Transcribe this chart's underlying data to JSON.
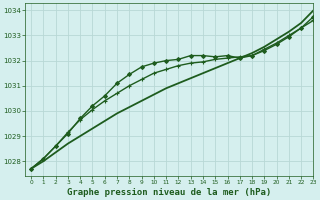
{
  "title": "Graphe pression niveau de la mer (hPa)",
  "background_color": "#d5efee",
  "grid_color": "#b8d8d5",
  "line_color": "#1e5c1e",
  "xlim": [
    -0.5,
    23
  ],
  "ylim": [
    1027.4,
    1034.3
  ],
  "yticks": [
    1028,
    1029,
    1030,
    1031,
    1032,
    1033,
    1034
  ],
  "xticks": [
    0,
    1,
    2,
    3,
    4,
    5,
    6,
    7,
    8,
    9,
    10,
    11,
    12,
    13,
    14,
    15,
    16,
    17,
    18,
    19,
    20,
    21,
    22,
    23
  ],
  "series": [
    {
      "x": [
        0,
        1,
        2,
        3,
        4,
        5,
        6,
        7,
        8,
        9,
        10,
        11,
        12,
        13,
        14,
        15,
        16,
        17,
        18,
        19,
        20,
        21,
        22,
        23
      ],
      "y": [
        1027.7,
        1028.0,
        1028.35,
        1028.7,
        1029.0,
        1029.3,
        1029.6,
        1029.9,
        1030.15,
        1030.4,
        1030.65,
        1030.9,
        1031.1,
        1031.3,
        1031.5,
        1031.7,
        1031.9,
        1032.1,
        1032.3,
        1032.55,
        1032.85,
        1033.15,
        1033.5,
        1034.0
      ],
      "marker": null,
      "linewidth": 1.3
    },
    {
      "x": [
        0,
        1,
        2,
        3,
        4,
        5,
        6,
        7,
        8,
        9,
        10,
        11,
        12,
        13,
        14,
        15,
        16,
        17,
        18,
        19,
        20,
        21,
        22,
        23
      ],
      "y": [
        1027.7,
        1028.1,
        1028.6,
        1029.1,
        1029.7,
        1030.2,
        1030.6,
        1031.1,
        1031.45,
        1031.75,
        1031.9,
        1032.0,
        1032.05,
        1032.2,
        1032.2,
        1032.15,
        1032.2,
        1032.1,
        1032.2,
        1032.4,
        1032.65,
        1032.95,
        1033.3,
        1033.75
      ],
      "marker": "D",
      "markersize": 2.0,
      "linewidth": 1.0
    },
    {
      "x": [
        0,
        1,
        2,
        3,
        4,
        5,
        6,
        7,
        8,
        9,
        10,
        11,
        12,
        13,
        14,
        15,
        16,
        17,
        18,
        19,
        20,
        21,
        22,
        23
      ],
      "y": [
        1027.7,
        1028.1,
        1028.6,
        1029.15,
        1029.65,
        1030.05,
        1030.4,
        1030.7,
        1031.0,
        1031.25,
        1031.5,
        1031.65,
        1031.8,
        1031.9,
        1031.95,
        1032.05,
        1032.1,
        1032.15,
        1032.2,
        1032.45,
        1032.7,
        1033.0,
        1033.3,
        1033.6
      ],
      "marker": "P",
      "markersize": 2.5,
      "linewidth": 1.0
    }
  ],
  "title_fontsize": 6.5,
  "tick_fontsize": 5.0,
  "xtick_fontsize": 4.2
}
